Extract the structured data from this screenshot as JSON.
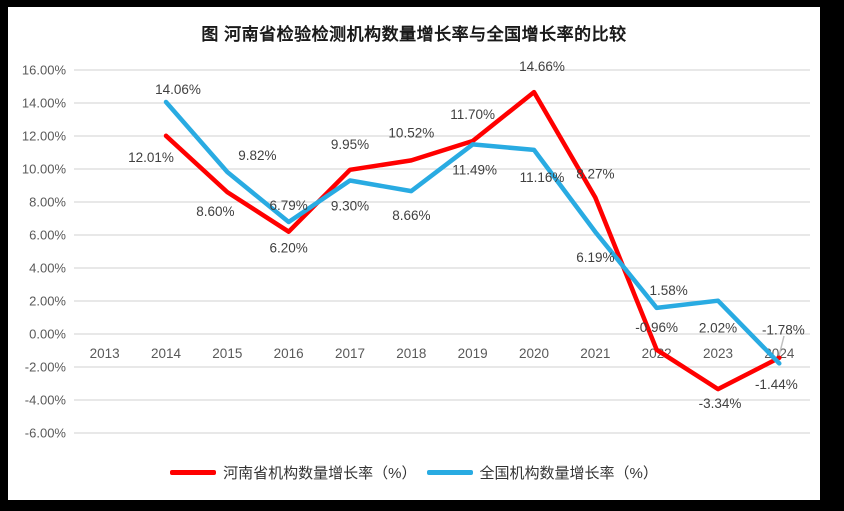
{
  "title": "图  河南省检验检测机构数量增长率与全国增长率的比较",
  "chart_data": {
    "type": "line",
    "title": "图  河南省检验检测机构数量增长率与全国增长率的比较",
    "categories": [
      "2013",
      "2014",
      "2015",
      "2016",
      "2017",
      "2018",
      "2019",
      "2020",
      "2021",
      "2022",
      "2023",
      "2024"
    ],
    "series": [
      {
        "name": "河南省机构数量增长率（%）",
        "color": "#FF0000",
        "values": [
          null,
          12.01,
          8.6,
          6.2,
          9.95,
          10.52,
          11.7,
          14.66,
          8.27,
          -0.96,
          -3.34,
          -1.44
        ],
        "labels": [
          null,
          "12.01%",
          "8.60%",
          "6.20%",
          "9.95%",
          "10.52%",
          "11.70%",
          "14.66%",
          "8.27%",
          "-0.96%",
          "-3.34%",
          "-1.44%"
        ]
      },
      {
        "name": "全国机构数量增长率（%）",
        "color": "#29ABE2",
        "values": [
          null,
          14.06,
          9.82,
          6.79,
          9.3,
          8.66,
          11.49,
          11.16,
          6.19,
          1.58,
          2.02,
          -1.78
        ],
        "labels": [
          null,
          "14.06%",
          "9.82%",
          "6.79%",
          "9.30%",
          "8.66%",
          "11.49%",
          "11.16%",
          "6.19%",
          "1.58%",
          "2.02%",
          "-1.78%"
        ]
      }
    ],
    "y_axis": {
      "min": -6,
      "max": 16,
      "step": 2,
      "tick_labels": [
        "16.00%",
        "14.00%",
        "12.00%",
        "10.00%",
        "8.00%",
        "6.00%",
        "4.00%",
        "2.00%",
        "0.00%",
        "-2.00%",
        "-4.00%",
        "-6.00%"
      ]
    },
    "grid": true,
    "legend_position": "bottom",
    "colors": {
      "gridline": "#D9D9D9",
      "axis_text": "#595959",
      "data_label_text": "#404040",
      "leader_line": "#BFBFBF",
      "chart_background": "#FFFFFF",
      "outer_frame": "#000000"
    }
  }
}
